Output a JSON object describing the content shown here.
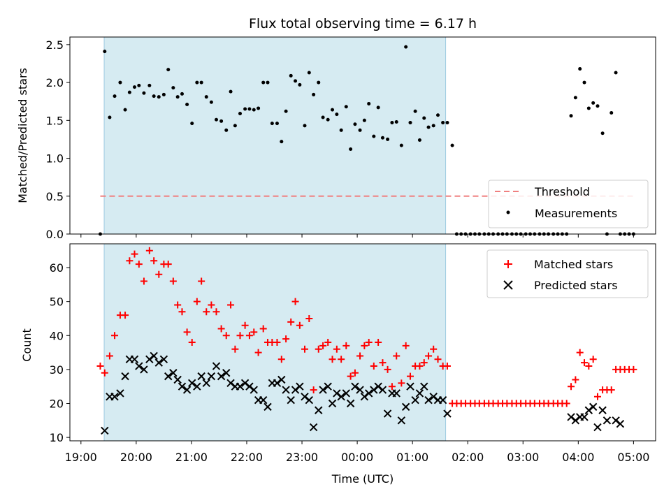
{
  "chart_data": [
    {
      "type": "scatter",
      "title": "Flux total observing time = 6.17 h",
      "xlabel": "",
      "ylabel": "Matched/Predicted stars",
      "ylim": [
        0,
        2.6
      ],
      "yticks": [
        0.0,
        0.5,
        1.0,
        1.5,
        2.0,
        2.5
      ],
      "ytick_labels": [
        "0.0",
        "0.5",
        "1.0",
        "1.5",
        "2.0",
        "2.5"
      ],
      "xlim_hours": [
        18.8,
        29.4
      ],
      "highlight_span_hours": [
        19.42,
        25.6
      ],
      "highlight_color": "#add8e6",
      "legend_position": "lower-right",
      "threshold": {
        "name": "Threshold",
        "value": 0.5,
        "x_range_hours": [
          19.35,
          29.0
        ],
        "color": "#f08080",
        "style": "dashed"
      },
      "series": [
        {
          "name": "Measurements",
          "color": "#000000",
          "marker": "dot",
          "x": [
            19.35,
            19.43,
            19.52,
            19.61,
            19.71,
            19.8,
            19.88,
            19.97,
            20.05,
            20.14,
            20.24,
            20.32,
            20.41,
            20.5,
            20.58,
            20.67,
            20.75,
            20.83,
            20.92,
            21.01,
            21.1,
            21.18,
            21.27,
            21.36,
            21.45,
            21.54,
            21.63,
            21.71,
            21.79,
            21.88,
            21.97,
            22.05,
            22.13,
            22.21,
            22.3,
            22.38,
            22.46,
            22.55,
            22.63,
            22.71,
            22.8,
            22.88,
            22.96,
            23.05,
            23.13,
            23.21,
            23.3,
            23.38,
            23.47,
            23.55,
            23.63,
            23.71,
            23.8,
            23.88,
            23.96,
            24.05,
            24.13,
            24.21,
            24.3,
            24.38,
            24.46,
            24.55,
            24.63,
            24.71,
            24.8,
            24.88,
            24.96,
            25.05,
            25.13,
            25.21,
            25.29,
            25.38,
            25.46,
            25.55,
            25.63,
            25.72,
            25.8,
            25.88,
            25.96,
            26.05,
            26.13,
            26.21,
            26.3,
            26.38,
            26.46,
            26.55,
            26.63,
            26.71,
            26.8,
            26.88,
            26.96,
            27.05,
            27.13,
            27.21,
            27.3,
            27.38,
            27.46,
            27.55,
            27.63,
            27.71,
            27.79,
            27.87,
            27.95,
            28.03,
            28.11,
            28.19,
            28.27,
            28.35,
            28.44,
            28.52,
            28.6,
            28.68,
            28.76,
            28.84,
            28.92,
            29.0
          ],
          "y": [
            0.0,
            2.41,
            1.54,
            1.82,
            2.0,
            1.64,
            1.87,
            1.94,
            1.96,
            1.86,
            1.96,
            1.82,
            1.81,
            1.84,
            2.17,
            1.93,
            1.81,
            1.85,
            1.71,
            1.46,
            2.0,
            2.0,
            1.81,
            1.74,
            1.51,
            1.49,
            1.37,
            1.88,
            1.43,
            1.59,
            1.65,
            1.65,
            1.64,
            1.66,
            2.0,
            2.0,
            1.46,
            1.46,
            1.22,
            1.62,
            2.09,
            2.02,
            1.97,
            1.43,
            2.13,
            1.84,
            2.0,
            1.54,
            1.51,
            1.64,
            1.58,
            1.37,
            1.68,
            1.12,
            1.45,
            1.37,
            1.5,
            1.72,
            1.29,
            1.67,
            1.27,
            1.25,
            1.47,
            1.48,
            1.17,
            2.47,
            1.47,
            1.62,
            1.24,
            1.53,
            1.41,
            1.43,
            1.57,
            1.47,
            1.47,
            1.17,
            0.0,
            0.0,
            0.0,
            0.0,
            0.0,
            0.0,
            0.0,
            0.0,
            0.0,
            0.0,
            0.0,
            0.0,
            0.0,
            0.0,
            0.0,
            0.0,
            0.0,
            0.0,
            0.0,
            0.0,
            0.0,
            0.0,
            0.0,
            0.0,
            0.0,
            1.56,
            1.8,
            2.18,
            2.0,
            1.66,
            1.73,
            1.69,
            1.33,
            0.0,
            1.6,
            2.13,
            0.0,
            0.0,
            0.0,
            0.0
          ]
        }
      ]
    },
    {
      "type": "scatter",
      "title": "",
      "xlabel": "Time (UTC)",
      "ylabel": "Count",
      "ylim": [
        9,
        67
      ],
      "yticks": [
        10,
        20,
        30,
        40,
        50,
        60
      ],
      "ytick_labels": [
        "10",
        "20",
        "30",
        "40",
        "50",
        "60"
      ],
      "xlim_hours": [
        18.8,
        29.4
      ],
      "xticks_hours": [
        19,
        20,
        21,
        22,
        23,
        24,
        25,
        26,
        27,
        28,
        29
      ],
      "xtick_labels": [
        "19:00",
        "20:00",
        "21:00",
        "22:00",
        "23:00",
        "00:00",
        "01:00",
        "02:00",
        "03:00",
        "04:00",
        "05:00"
      ],
      "highlight_span_hours": [
        19.42,
        25.6
      ],
      "highlight_color": "#add8e6",
      "legend_position": "upper-right",
      "series": [
        {
          "name": "Matched stars",
          "color": "#ff0000",
          "marker": "plus",
          "x": [
            19.35,
            19.43,
            19.52,
            19.61,
            19.71,
            19.8,
            19.88,
            19.97,
            20.05,
            20.14,
            20.24,
            20.32,
            20.41,
            20.5,
            20.58,
            20.67,
            20.75,
            20.83,
            20.92,
            21.01,
            21.1,
            21.18,
            21.27,
            21.36,
            21.45,
            21.54,
            21.63,
            21.71,
            21.79,
            21.88,
            21.97,
            22.05,
            22.13,
            22.21,
            22.3,
            22.38,
            22.46,
            22.55,
            22.63,
            22.71,
            22.8,
            22.88,
            22.96,
            23.05,
            23.13,
            23.21,
            23.3,
            23.38,
            23.47,
            23.55,
            23.63,
            23.71,
            23.8,
            23.88,
            23.96,
            24.05,
            24.13,
            24.21,
            24.3,
            24.38,
            24.46,
            24.55,
            24.63,
            24.71,
            24.8,
            24.88,
            24.96,
            25.05,
            25.13,
            25.21,
            25.29,
            25.38,
            25.46,
            25.55,
            25.63,
            25.72,
            25.8,
            25.88,
            25.96,
            26.05,
            26.13,
            26.21,
            26.3,
            26.38,
            26.46,
            26.55,
            26.63,
            26.71,
            26.8,
            26.88,
            26.96,
            27.05,
            27.13,
            27.21,
            27.3,
            27.38,
            27.46,
            27.55,
            27.63,
            27.71,
            27.79,
            27.87,
            27.95,
            28.03,
            28.11,
            28.19,
            28.27,
            28.35,
            28.44,
            28.52,
            28.6,
            28.68,
            28.76,
            28.84,
            28.92,
            29.0
          ],
          "y": [
            31,
            29,
            34,
            40,
            46,
            46,
            62,
            64,
            61,
            56,
            65,
            62,
            58,
            61,
            61,
            56,
            49,
            47,
            41,
            38,
            50,
            56,
            47,
            49,
            47,
            42,
            40,
            49,
            36,
            40,
            43,
            40,
            41,
            35,
            42,
            38,
            38,
            38,
            33,
            39,
            44,
            50,
            43,
            36,
            45,
            24,
            36,
            37,
            38,
            33,
            36,
            33,
            37,
            28,
            29,
            34,
            37,
            38,
            31,
            38,
            32,
            30,
            25,
            34,
            26,
            37,
            28,
            31,
            31,
            32,
            34,
            36,
            33,
            31,
            31,
            20,
            20,
            20,
            20,
            20,
            20,
            20,
            20,
            20,
            20,
            20,
            20,
            20,
            20,
            20,
            20,
            20,
            20,
            20,
            20,
            20,
            20,
            20,
            20,
            20,
            20,
            25,
            27,
            35,
            32,
            31,
            33,
            22,
            24,
            24,
            24,
            30,
            30,
            30,
            30,
            30
          ]
        },
        {
          "name": "Predicted stars",
          "color": "#000000",
          "marker": "x",
          "x": [
            19.43,
            19.52,
            19.61,
            19.71,
            19.8,
            19.88,
            19.97,
            20.05,
            20.14,
            20.24,
            20.32,
            20.41,
            20.5,
            20.58,
            20.67,
            20.75,
            20.83,
            20.92,
            21.01,
            21.1,
            21.18,
            21.27,
            21.36,
            21.45,
            21.54,
            21.63,
            21.71,
            21.79,
            21.88,
            21.97,
            22.05,
            22.13,
            22.21,
            22.3,
            22.38,
            22.46,
            22.55,
            22.63,
            22.71,
            22.8,
            22.88,
            22.96,
            23.05,
            23.13,
            23.21,
            23.3,
            23.38,
            23.47,
            23.55,
            23.63,
            23.71,
            23.8,
            23.88,
            23.96,
            24.05,
            24.13,
            24.21,
            24.3,
            24.38,
            24.46,
            24.55,
            24.63,
            24.71,
            24.8,
            24.88,
            24.96,
            25.05,
            25.13,
            25.21,
            25.29,
            25.38,
            25.46,
            25.55,
            25.63,
            27.87,
            27.95,
            28.03,
            28.11,
            28.19,
            28.27,
            28.35,
            28.44,
            28.52,
            28.68,
            28.76
          ],
          "y": [
            12,
            22,
            22,
            23,
            28,
            33,
            33,
            31,
            30,
            33,
            34,
            32,
            33,
            28,
            29,
            27,
            25,
            24,
            26,
            25,
            28,
            26,
            28,
            31,
            28,
            29,
            26,
            25,
            25,
            26,
            25,
            24,
            21,
            21,
            19,
            26,
            26,
            27,
            24,
            21,
            24,
            25,
            22,
            21,
            13,
            18,
            24,
            25,
            20,
            23,
            22,
            23,
            20,
            25,
            24,
            22,
            23,
            24,
            25,
            24,
            17,
            23,
            23,
            15,
            19,
            25,
            21,
            23,
            25,
            21,
            22,
            21,
            21,
            17,
            16,
            15,
            16,
            16,
            18,
            19,
            13,
            18,
            15,
            15,
            14
          ]
        }
      ]
    }
  ]
}
